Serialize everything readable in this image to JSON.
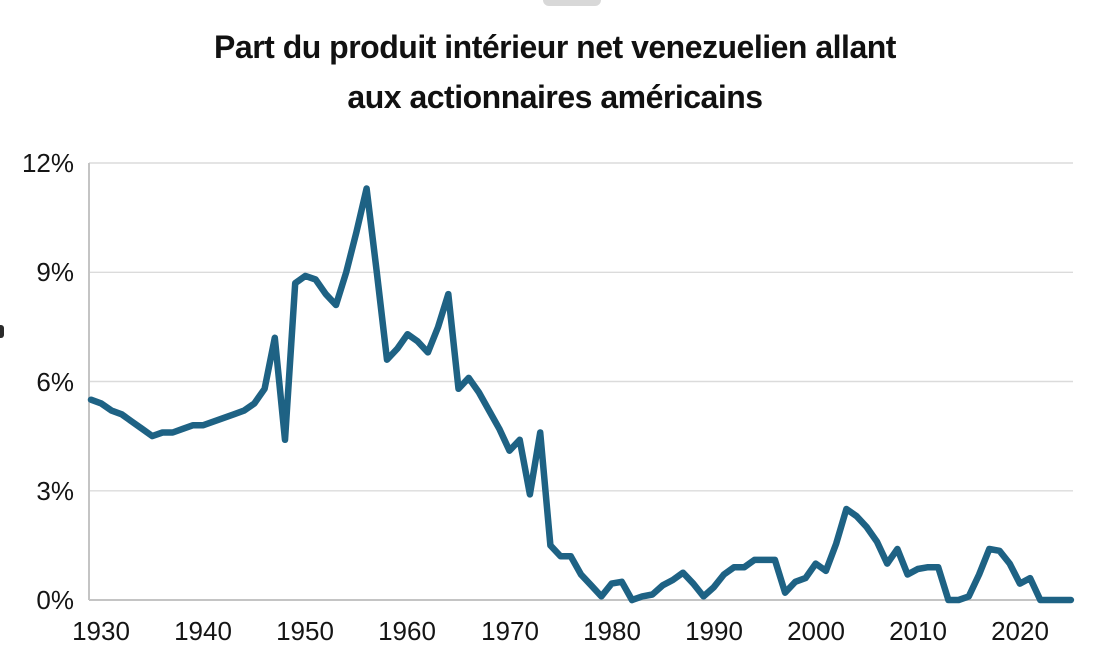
{
  "title": {
    "line1": "Part du produit intérieur net venezuelien allant",
    "line2": "aux actionnaires américains"
  },
  "colors": {
    "line": "#1E6284",
    "gridline": "#DBDBDB",
    "axis": "#C4C4C4",
    "text": "#151515",
    "title_text": "#111111",
    "background": "#FFFFFF",
    "window_puck": "#D8D8D8"
  },
  "y_axis": {
    "tick_labels": [
      "0%",
      "3%",
      "6%",
      "9%",
      "12%"
    ],
    "tick_values": [
      0,
      3,
      6,
      9,
      12
    ]
  },
  "x_axis": {
    "tick_labels": [
      "1930",
      "1940",
      "1950",
      "1960",
      "1970",
      "1980",
      "1990",
      "2000",
      "2010",
      "2020"
    ],
    "tick_values": [
      1930,
      1940,
      1950,
      1960,
      1970,
      1980,
      1990,
      2000,
      2010,
      2020
    ]
  },
  "chart_data": {
    "type": "line",
    "title": "Part du produit intérieur net venezuelien allant aux actionnaires américains",
    "xlabel": "",
    "ylabel": "",
    "legend": "none",
    "grid": "horizontal",
    "xlim": [
      1928.8,
      2025.4
    ],
    "ylim": [
      0,
      12
    ],
    "unit": "%",
    "x": [
      1929,
      1930,
      1931,
      1932,
      1933,
      1934,
      1935,
      1936,
      1937,
      1938,
      1939,
      1940,
      1941,
      1942,
      1943,
      1944,
      1945,
      1946,
      1947,
      1948,
      1949,
      1950,
      1951,
      1952,
      1953,
      1954,
      1955,
      1956,
      1957,
      1958,
      1959,
      1960,
      1961,
      1962,
      1963,
      1964,
      1965,
      1966,
      1967,
      1968,
      1969,
      1970,
      1971,
      1972,
      1973,
      1974,
      1975,
      1976,
      1977,
      1978,
      1979,
      1980,
      1981,
      1982,
      1983,
      1984,
      1985,
      1986,
      1987,
      1988,
      1989,
      1990,
      1991,
      1992,
      1993,
      1994,
      1995,
      1996,
      1997,
      1998,
      1999,
      2000,
      2001,
      2002,
      2003,
      2004,
      2005,
      2006,
      2007,
      2008,
      2009,
      2010,
      2011,
      2012,
      2013,
      2014,
      2015,
      2016,
      2017,
      2018,
      2019,
      2020,
      2021,
      2022,
      2023,
      2024,
      2025
    ],
    "y": [
      5.5,
      5.4,
      5.2,
      5.1,
      4.9,
      4.7,
      4.5,
      4.6,
      4.6,
      4.7,
      4.8,
      4.8,
      4.9,
      5.0,
      5.1,
      5.2,
      5.4,
      5.8,
      7.2,
      4.4,
      8.7,
      8.9,
      8.8,
      8.4,
      8.1,
      9.0,
      10.1,
      11.3,
      9.0,
      6.6,
      6.9,
      7.3,
      7.1,
      6.8,
      7.5,
      8.4,
      5.8,
      6.1,
      5.7,
      5.2,
      4.7,
      4.1,
      4.4,
      2.9,
      4.6,
      1.5,
      1.2,
      1.2,
      0.7,
      0.4,
      0.1,
      0.45,
      0.5,
      0.0,
      0.1,
      0.15,
      0.4,
      0.55,
      0.75,
      0.45,
      0.1,
      0.35,
      0.7,
      0.9,
      0.9,
      1.1,
      1.1,
      1.1,
      0.2,
      0.5,
      0.6,
      1.0,
      0.8,
      1.55,
      2.5,
      2.3,
      2.0,
      1.6,
      1.0,
      1.4,
      0.7,
      0.85,
      0.9,
      0.9,
      0.0,
      0.0,
      0.1,
      0.7,
      1.4,
      1.35,
      1.0,
      0.45,
      0.6,
      0.0,
      0.0,
      0.0,
      0.0
    ]
  }
}
